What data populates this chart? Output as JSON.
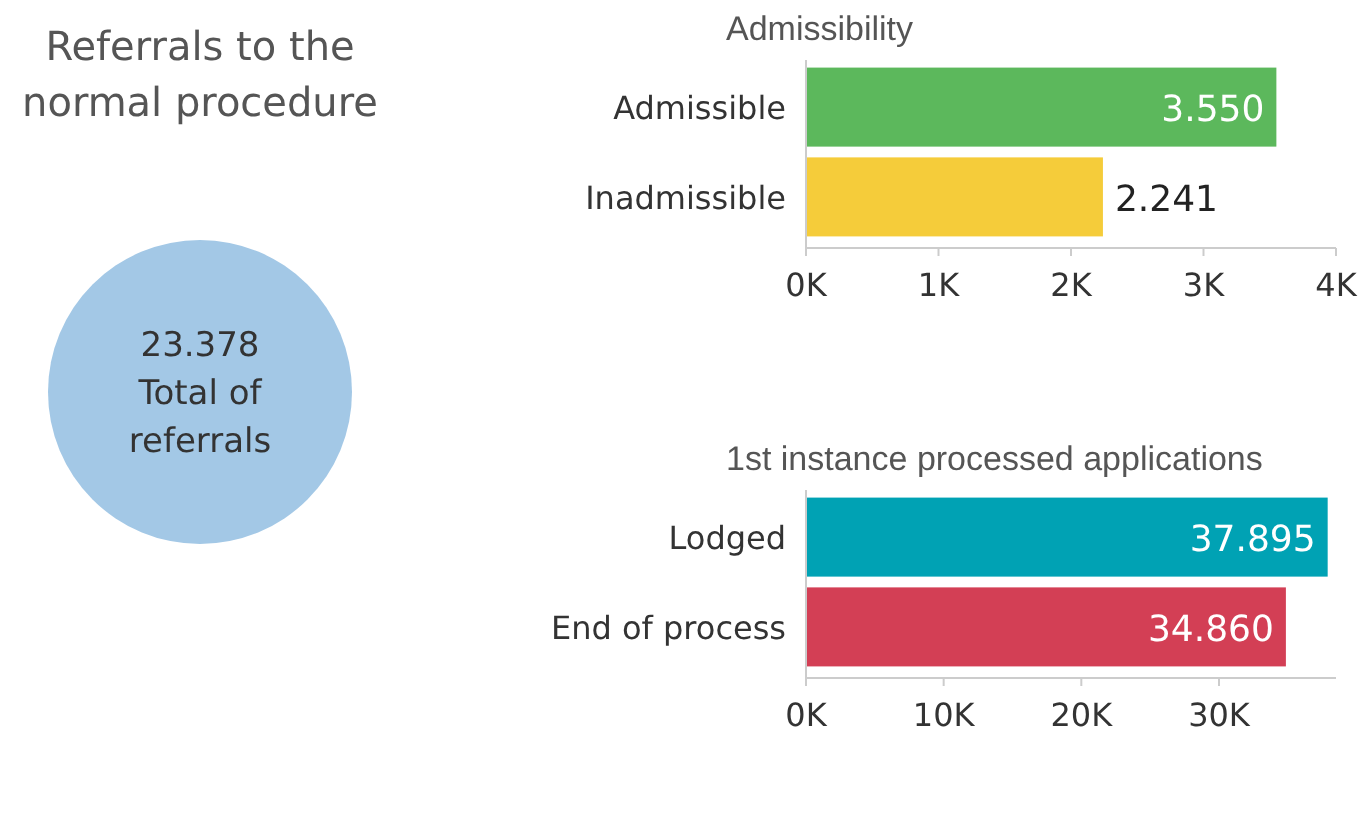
{
  "chart_data": [
    {
      "type": "other",
      "title": "Referrals to the normal procedure",
      "annotations": [
        "23.378",
        "Total of",
        "referrals"
      ]
    },
    {
      "type": "bar",
      "orientation": "horizontal",
      "title": "Admissibility",
      "categories": [
        "Admissible",
        "Inadmissible"
      ],
      "values": [
        3550,
        2241
      ],
      "colors": [
        "#5cb85c",
        "#f5cc3a"
      ],
      "value_labels": [
        "3.550",
        "2.241"
      ],
      "xlim": [
        0,
        4000
      ],
      "xticks": [
        {
          "value": 0,
          "label": "0K"
        },
        {
          "value": 1000,
          "label": "1K"
        },
        {
          "value": 2000,
          "label": "2K"
        },
        {
          "value": 3000,
          "label": "3K"
        },
        {
          "value": 4000,
          "label": "4K"
        }
      ]
    },
    {
      "type": "bar",
      "orientation": "horizontal",
      "title": "1st instance processed applications",
      "categories": [
        "Lodged",
        "End of process"
      ],
      "values": [
        37895,
        34860
      ],
      "colors": [
        "#00a2b4",
        "#d33f55"
      ],
      "value_labels": [
        "37.895",
        "34.860"
      ],
      "xlim": [
        0,
        38500
      ],
      "xticks": [
        {
          "value": 0,
          "label": "0K"
        },
        {
          "value": 10000,
          "label": "10K"
        },
        {
          "value": 20000,
          "label": "20K"
        },
        {
          "value": 30000,
          "label": "30K"
        }
      ]
    }
  ]
}
